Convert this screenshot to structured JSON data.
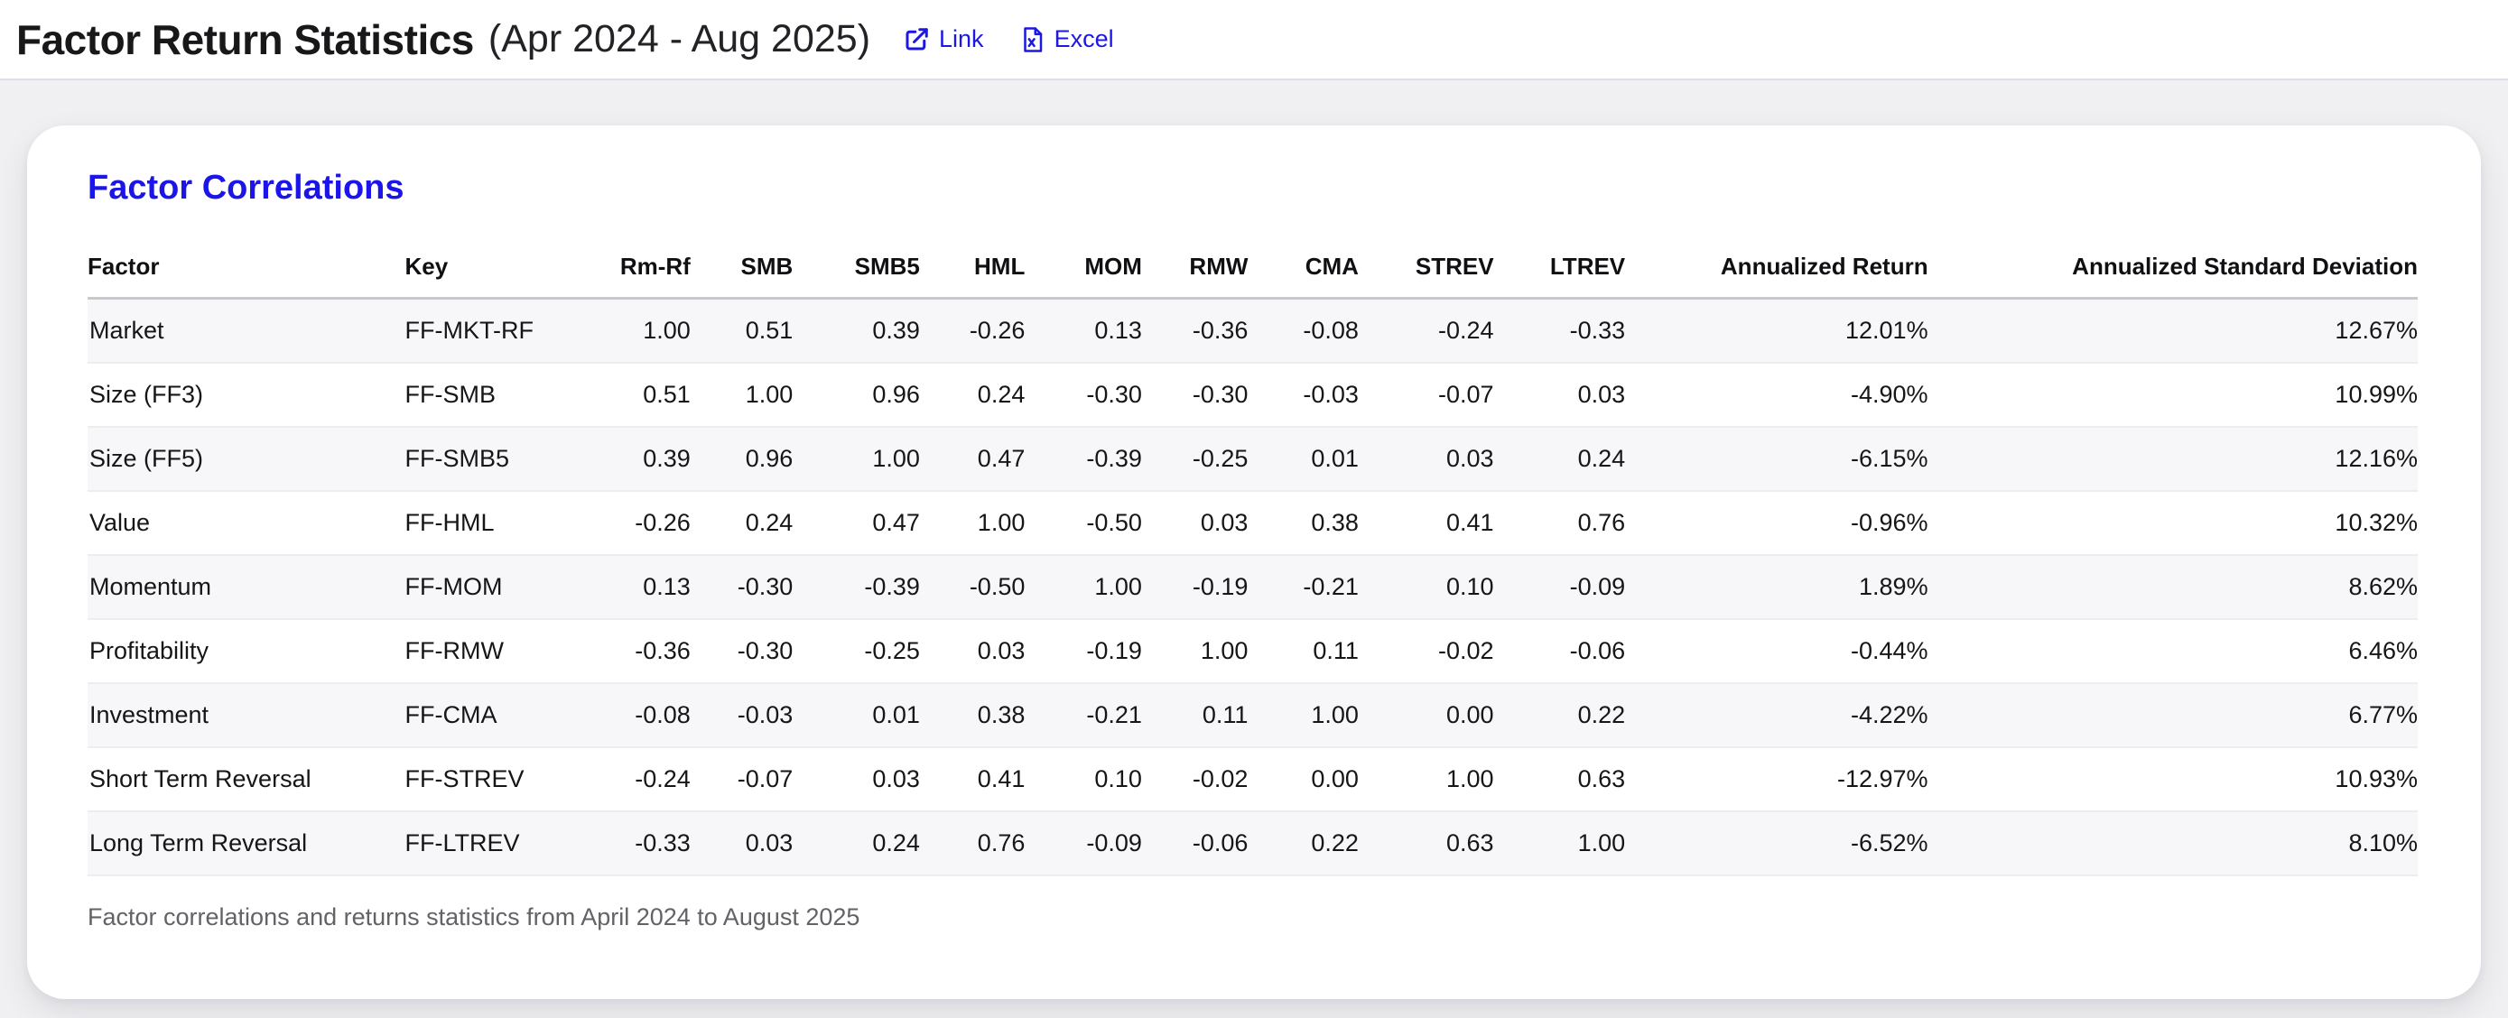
{
  "page": {
    "title": "Factor Return Statistics",
    "subtitle": "(Apr 2024 - Aug 2025)",
    "links": [
      {
        "label": "Link",
        "icon": "external-link-icon"
      },
      {
        "label": "Excel",
        "icon": "excel-file-icon"
      }
    ]
  },
  "card": {
    "heading": "Factor Correlations",
    "caption": "Factor correlations and returns statistics from April 2024 to August 2025",
    "table": {
      "columns": [
        "Factor",
        "Key",
        "Rm-Rf",
        "SMB",
        "SMB5",
        "HML",
        "MOM",
        "RMW",
        "CMA",
        "STREV",
        "LTREV",
        "Annualized Return",
        "Annualized Standard Deviation"
      ],
      "rows": [
        [
          "Market",
          "FF-MKT-RF",
          "1.00",
          "0.51",
          "0.39",
          "-0.26",
          "0.13",
          "-0.36",
          "-0.08",
          "-0.24",
          "-0.33",
          "12.01%",
          "12.67%"
        ],
        [
          "Size (FF3)",
          "FF-SMB",
          "0.51",
          "1.00",
          "0.96",
          "0.24",
          "-0.30",
          "-0.30",
          "-0.03",
          "-0.07",
          "0.03",
          "-4.90%",
          "10.99%"
        ],
        [
          "Size (FF5)",
          "FF-SMB5",
          "0.39",
          "0.96",
          "1.00",
          "0.47",
          "-0.39",
          "-0.25",
          "0.01",
          "0.03",
          "0.24",
          "-6.15%",
          "12.16%"
        ],
        [
          "Value",
          "FF-HML",
          "-0.26",
          "0.24",
          "0.47",
          "1.00",
          "-0.50",
          "0.03",
          "0.38",
          "0.41",
          "0.76",
          "-0.96%",
          "10.32%"
        ],
        [
          "Momentum",
          "FF-MOM",
          "0.13",
          "-0.30",
          "-0.39",
          "-0.50",
          "1.00",
          "-0.19",
          "-0.21",
          "0.10",
          "-0.09",
          "1.89%",
          "8.62%"
        ],
        [
          "Profitability",
          "FF-RMW",
          "-0.36",
          "-0.30",
          "-0.25",
          "0.03",
          "-0.19",
          "1.00",
          "0.11",
          "-0.02",
          "-0.06",
          "-0.44%",
          "6.46%"
        ],
        [
          "Investment",
          "FF-CMA",
          "-0.08",
          "-0.03",
          "0.01",
          "0.38",
          "-0.21",
          "0.11",
          "1.00",
          "0.00",
          "0.22",
          "-4.22%",
          "6.77%"
        ],
        [
          "Short Term Reversal",
          "FF-STREV",
          "-0.24",
          "-0.07",
          "0.03",
          "0.41",
          "0.10",
          "-0.02",
          "0.00",
          "1.00",
          "0.63",
          "-12.97%",
          "10.93%"
        ],
        [
          "Long Term Reversal",
          "FF-LTREV",
          "-0.33",
          "0.03",
          "0.24",
          "0.76",
          "-0.09",
          "-0.06",
          "0.22",
          "0.63",
          "1.00",
          "-6.52%",
          "8.10%"
        ]
      ]
    }
  },
  "colors": {
    "accent_blue": "#1c15e8",
    "page_background": "#f0f0f2",
    "card_background": "#ffffff",
    "stripe_row": "#f7f7f9",
    "header_rule": "#c9c9cd",
    "caption_text": "#626267"
  }
}
